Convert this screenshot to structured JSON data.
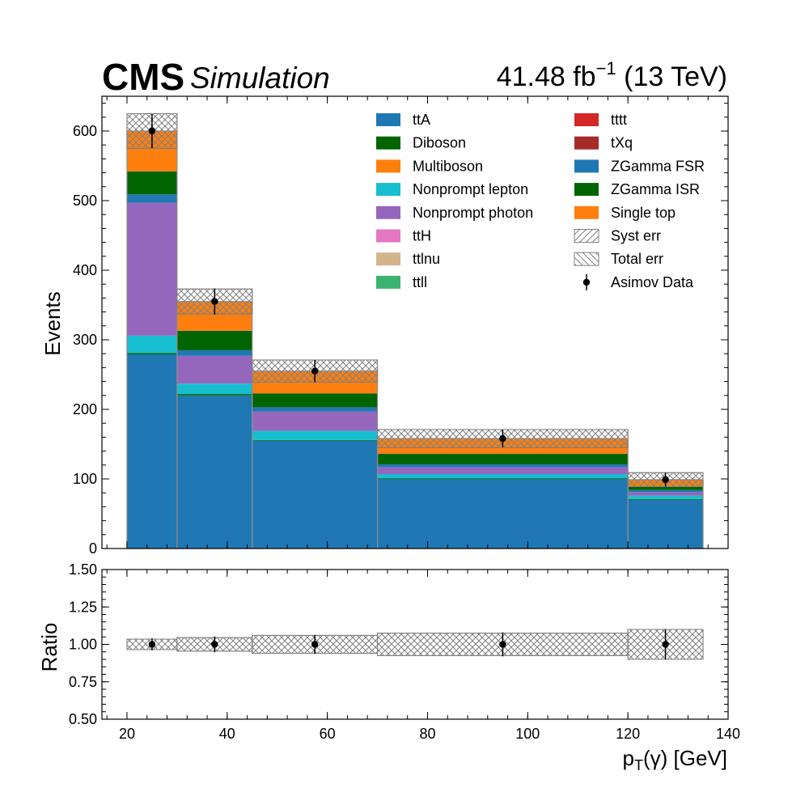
{
  "header": {
    "experiment": "CMS",
    "status": "Simulation",
    "lumi_value": "41.48 fb",
    "lumi_exponent": "−1",
    "lumi_energy": " (13 TeV)"
  },
  "colors": {
    "ttA": "#1f77b4",
    "Diboson": "#006400",
    "Multiboson": "#ff7f0e",
    "Nonprompt lepton": "#17becf",
    "Nonprompt photon": "#9467bd",
    "ttH": "#e377c2",
    "ttlnu": "#d2b48c",
    "ttll": "#3cb371",
    "tttt": "#d62728",
    "tXq": "#a52a2a",
    "ZGamma FSR": "#1f77b4",
    "ZGamma ISR": "#006400",
    "Single top": "#ff7f0e",
    "hatch": "#808080"
  },
  "chart_data": [
    {
      "type": "bar",
      "stacked": true,
      "ylabel": "Events",
      "xlim": [
        15,
        140
      ],
      "ylim": [
        0,
        650
      ],
      "yticks": [
        "0",
        "100",
        "200",
        "300",
        "400",
        "500",
        "600"
      ],
      "bin_edges": [
        20,
        30,
        45,
        70,
        120,
        135
      ],
      "series": [
        {
          "name": "ttA",
          "values": [
            279,
            220,
            155,
            100,
            70
          ]
        },
        {
          "name": "Diboson",
          "values": [
            2,
            2,
            1,
            1,
            1
          ]
        },
        {
          "name": "Multiboson",
          "values": [
            0,
            0,
            0,
            0,
            0
          ]
        },
        {
          "name": "Nonprompt lepton",
          "values": [
            25,
            15,
            13,
            6,
            5
          ]
        },
        {
          "name": "Nonprompt photon",
          "values": [
            191,
            40,
            28,
            10,
            5
          ]
        },
        {
          "name": "ttH",
          "values": [
            0,
            0,
            0,
            0,
            0
          ]
        },
        {
          "name": "ttlnu",
          "values": [
            0,
            0,
            0,
            0,
            0
          ]
        },
        {
          "name": "ttll",
          "values": [
            0,
            0,
            0,
            0,
            0
          ]
        },
        {
          "name": "tttt",
          "values": [
            0,
            0,
            0,
            0,
            0
          ]
        },
        {
          "name": "tXq",
          "values": [
            0,
            0,
            0,
            0,
            0
          ]
        },
        {
          "name": "ZGamma FSR",
          "values": [
            12,
            8,
            6,
            4,
            3
          ]
        },
        {
          "name": "ZGamma ISR",
          "values": [
            33,
            28,
            20,
            15,
            5
          ]
        },
        {
          "name": "Single top",
          "values": [
            58,
            42,
            32,
            22,
            10
          ]
        }
      ],
      "total": [
        600,
        355,
        255,
        158,
        99
      ],
      "syst_err_band": [
        [
          575,
          625
        ],
        [
          337,
          373
        ],
        [
          239,
          271
        ],
        [
          145,
          171
        ],
        [
          89,
          109
        ]
      ],
      "total_err_band": [
        [
          575,
          625
        ],
        [
          337,
          373
        ],
        [
          239,
          271
        ],
        [
          145,
          171
        ],
        [
          89,
          109
        ]
      ],
      "asimov_data": {
        "x": [
          25,
          37.5,
          57.5,
          95,
          127.5
        ],
        "y": [
          600,
          355,
          255,
          158,
          99
        ],
        "yerr": [
          24.5,
          18.8,
          16.0,
          12.6,
          10.0
        ]
      },
      "legend": {
        "placement": "top-right",
        "entries": [
          "ttA",
          "Diboson",
          "Multiboson",
          "Nonprompt lepton",
          "Nonprompt photon",
          "ttH",
          "ttlnu",
          "ttll",
          "tttt",
          "tXq",
          "ZGamma FSR",
          "ZGamma ISR",
          "Single top",
          "Syst err",
          "Total err",
          "Asimov Data"
        ]
      }
    },
    {
      "type": "scatter",
      "ylabel": "Ratio",
      "xlabel_main": "p",
      "xlabel_sub": "T",
      "xlabel_rest": "(γ) [GeV]",
      "xlim": [
        15,
        140
      ],
      "ylim": [
        0.5,
        1.5
      ],
      "yticks": [
        "0.50",
        "0.75",
        "1.00",
        "1.25",
        "1.50"
      ],
      "xticks": [
        "20",
        "40",
        "60",
        "80",
        "100",
        "120",
        "140"
      ],
      "bin_edges": [
        20,
        30,
        45,
        70,
        120,
        135
      ],
      "ratio_band": [
        [
          0.965,
          1.035
        ],
        [
          0.955,
          1.045
        ],
        [
          0.94,
          1.06
        ],
        [
          0.925,
          1.075
        ],
        [
          0.9,
          1.1
        ]
      ],
      "ratio_points": {
        "x": [
          25,
          37.5,
          57.5,
          95,
          127.5
        ],
        "y": [
          1.0,
          1.0,
          1.0,
          1.0,
          1.0
        ],
        "yerr": [
          0.04,
          0.053,
          0.063,
          0.08,
          0.101
        ]
      }
    }
  ]
}
